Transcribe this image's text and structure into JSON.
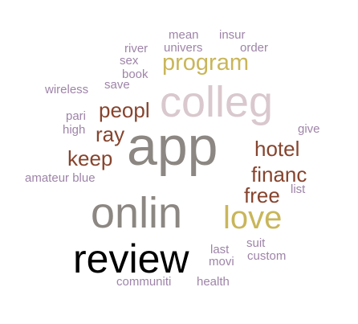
{
  "words": {
    "mean": "mean",
    "insur": "insur",
    "river": "river",
    "univers": "univers",
    "order": "order",
    "sex": "sex",
    "program": "program",
    "book": "book",
    "wireless": "wireless",
    "save": "save",
    "colleg": "colleg",
    "peopl": "peopl",
    "pari": "pari",
    "ray": "ray",
    "high": "high",
    "give": "give",
    "app": "app",
    "hotel": "hotel",
    "keep": "keep",
    "financ": "financ",
    "amateur_blue": "amateur blue",
    "list": "list",
    "free": "free",
    "onlin": "onlin",
    "love": "love",
    "suit": "suit",
    "last": "last",
    "review": "review",
    "custom": "custom",
    "movi": "movi",
    "communiti": "communiti",
    "health": "health"
  },
  "colors": {
    "purple": "#9e84a8",
    "brown": "#86442e",
    "gold": "#c9b65a",
    "gray": "#8c8782",
    "pink": "#d9c8cd",
    "black": "#000000"
  }
}
